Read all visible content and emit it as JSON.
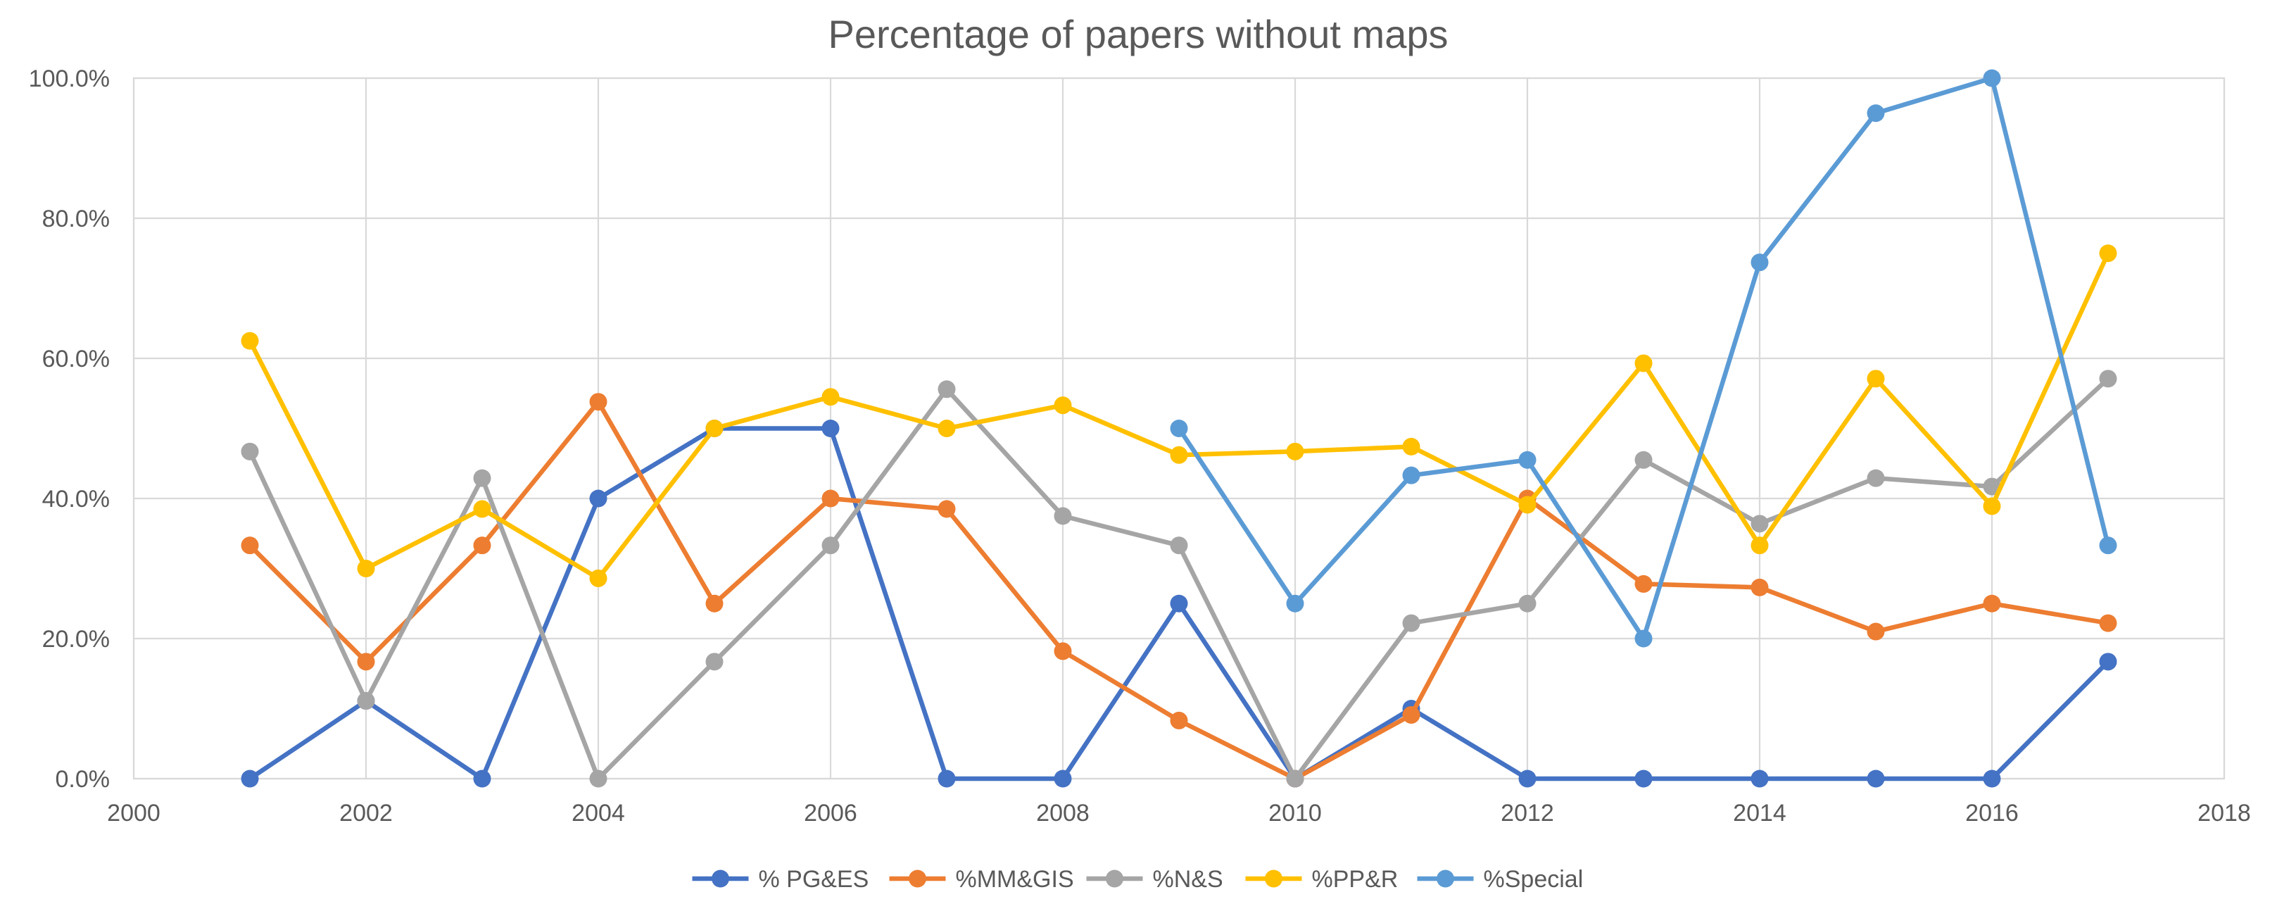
{
  "chart_data": {
    "type": "line",
    "title": "Percentage of papers without maps",
    "xlabel": "",
    "ylabel": "",
    "xlim": [
      2000,
      2018
    ],
    "ylim": [
      0,
      1
    ],
    "x_ticks": [
      "2000",
      "2002",
      "2004",
      "2006",
      "2008",
      "2010",
      "2012",
      "2014",
      "2016",
      "2018"
    ],
    "y_ticks": [
      "0.0%",
      "20.0%",
      "40.0%",
      "60.0%",
      "80.0%",
      "100.0%"
    ],
    "grid": true,
    "legend_position": "bottom",
    "series": [
      {
        "name": "% PG&ES",
        "color": "#4472C4",
        "points": [
          [
            2001,
            0.0
          ],
          [
            2002,
            0.111
          ],
          [
            2003,
            0.0
          ],
          [
            2004,
            0.4
          ],
          [
            2005,
            0.5
          ],
          [
            2006,
            0.5
          ],
          [
            2007,
            0.0
          ],
          [
            2008,
            0.0
          ],
          [
            2009,
            0.25
          ],
          [
            2010,
            0.0
          ],
          [
            2011,
            0.1
          ],
          [
            2012,
            0.0
          ],
          [
            2013,
            0.0
          ],
          [
            2014,
            0.0
          ],
          [
            2015,
            0.0
          ],
          [
            2016,
            0.0
          ],
          [
            2017,
            0.167
          ]
        ]
      },
      {
        "name": "%MM&GIS",
        "color": "#ED7D31",
        "points": [
          [
            2001,
            0.333
          ],
          [
            2002,
            0.167
          ],
          [
            2003,
            0.333
          ],
          [
            2004,
            0.538
          ],
          [
            2005,
            0.25
          ],
          [
            2006,
            0.4
          ],
          [
            2007,
            0.385
          ],
          [
            2008,
            0.182
          ],
          [
            2009,
            0.083
          ],
          [
            2010,
            0.0
          ],
          [
            2011,
            0.091
          ],
          [
            2012,
            0.4
          ],
          [
            2013,
            0.278
          ],
          [
            2014,
            0.273
          ],
          [
            2015,
            0.21
          ],
          [
            2016,
            0.25
          ],
          [
            2017,
            0.222
          ]
        ]
      },
      {
        "name": "%N&S",
        "color": "#A5A5A5",
        "points": [
          [
            2001,
            0.467
          ],
          [
            2002,
            0.111
          ],
          [
            2003,
            0.429
          ],
          [
            2004,
            0.0
          ],
          [
            2005,
            0.167
          ],
          [
            2006,
            0.333
          ],
          [
            2007,
            0.556
          ],
          [
            2008,
            0.375
          ],
          [
            2009,
            0.333
          ],
          [
            2010,
            0.0
          ],
          [
            2011,
            0.222
          ],
          [
            2012,
            0.25
          ],
          [
            2013,
            0.455
          ],
          [
            2014,
            0.364
          ],
          [
            2015,
            0.429
          ],
          [
            2016,
            0.417
          ],
          [
            2017,
            0.571
          ]
        ]
      },
      {
        "name": "%PP&R",
        "color": "#FFC000",
        "points": [
          [
            2001,
            0.625
          ],
          [
            2002,
            0.3
          ],
          [
            2003,
            0.385
          ],
          [
            2004,
            0.286
          ],
          [
            2005,
            0.5
          ],
          [
            2006,
            0.545
          ],
          [
            2007,
            0.5
          ],
          [
            2008,
            0.533
          ],
          [
            2009,
            0.462
          ],
          [
            2010,
            0.467
          ],
          [
            2011,
            0.474
          ],
          [
            2012,
            0.391
          ],
          [
            2013,
            0.593
          ],
          [
            2014,
            0.333
          ],
          [
            2015,
            0.571
          ],
          [
            2016,
            0.389
          ],
          [
            2017,
            0.75
          ]
        ]
      },
      {
        "name": "%Special",
        "color": "#5B9BD5",
        "points": [
          [
            2009,
            0.5
          ],
          [
            2010,
            0.25
          ],
          [
            2011,
            0.433
          ],
          [
            2012,
            0.455
          ],
          [
            2013,
            0.2
          ],
          [
            2014,
            0.737
          ],
          [
            2015,
            0.95
          ],
          [
            2016,
            1.0
          ],
          [
            2017,
            0.333
          ]
        ]
      }
    ]
  }
}
